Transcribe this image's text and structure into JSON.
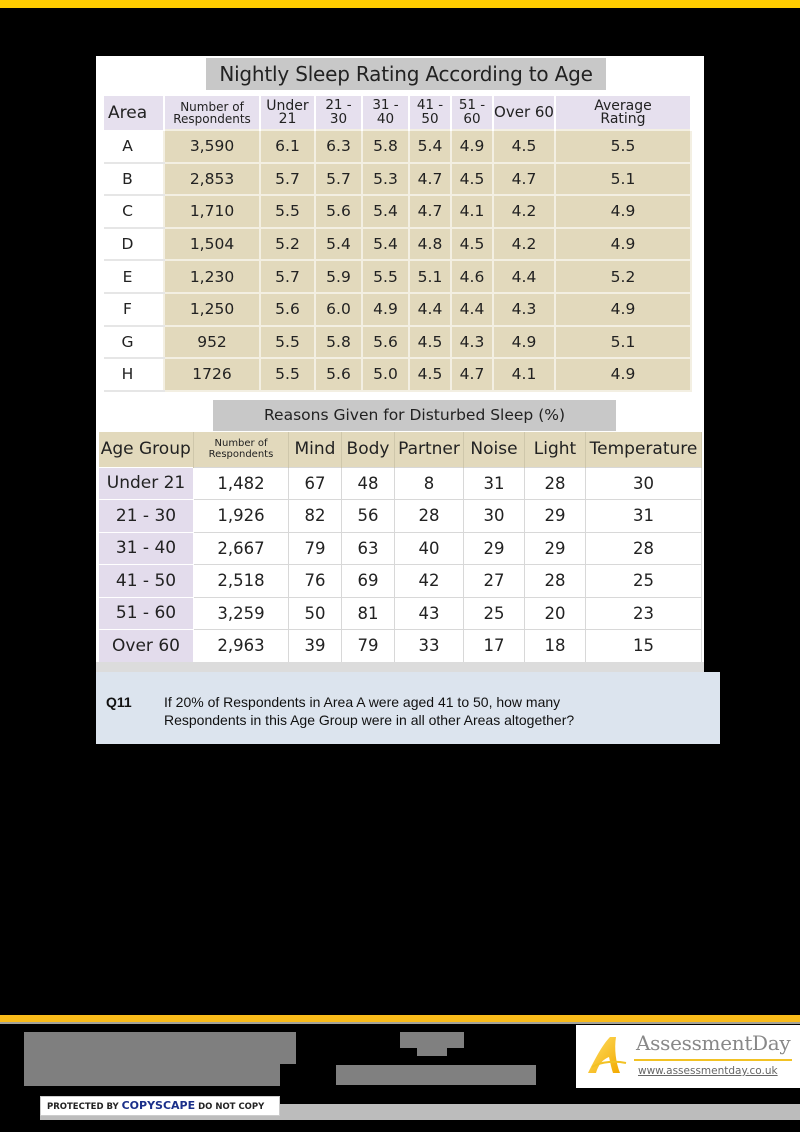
{
  "colors": {
    "accent_yellow": "#ffcc00",
    "footer_yellow": "#f9bb1a",
    "table1_header_bg": "#e6e0ee",
    "table1_cell_bg": "#e2d9bc",
    "table2_header_bg": "#e2d9bc",
    "table2_agegroup_bg": "#e3dcec",
    "question_bg": "#dce4ee"
  },
  "sleep_rating_table": {
    "title": "Nightly Sleep Rating According to Age",
    "headers": {
      "area": "Area",
      "respondents_1": "Number of",
      "respondents_2": "Respondents",
      "under21_1": "Under",
      "under21_2": "21",
      "c21_30": "21 - 30",
      "c31_40": "31 - 40",
      "c41_50": "41 - 50",
      "c51_60": "51 - 60",
      "over60": "Over 60",
      "avg_1": "Average",
      "avg_2": "Rating"
    },
    "rows": [
      {
        "area": "A",
        "respondents": "3,590",
        "under21": "6.1",
        "c21_30": "6.3",
        "c31_40": "5.8",
        "c41_50": "5.4",
        "c51_60": "4.9",
        "over60": "4.5",
        "avg": "5.5"
      },
      {
        "area": "B",
        "respondents": "2,853",
        "under21": "5.7",
        "c21_30": "5.7",
        "c31_40": "5.3",
        "c41_50": "4.7",
        "c51_60": "4.5",
        "over60": "4.7",
        "avg": "5.1"
      },
      {
        "area": "C",
        "respondents": "1,710",
        "under21": "5.5",
        "c21_30": "5.6",
        "c31_40": "5.4",
        "c41_50": "4.7",
        "c51_60": "4.1",
        "over60": "4.2",
        "avg": "4.9"
      },
      {
        "area": "D",
        "respondents": "1,504",
        "under21": "5.2",
        "c21_30": "5.4",
        "c31_40": "5.4",
        "c41_50": "4.8",
        "c51_60": "4.5",
        "over60": "4.2",
        "avg": "4.9"
      },
      {
        "area": "E",
        "respondents": "1,230",
        "under21": "5.7",
        "c21_30": "5.9",
        "c31_40": "5.5",
        "c41_50": "5.1",
        "c51_60": "4.6",
        "over60": "4.4",
        "avg": "5.2"
      },
      {
        "area": "F",
        "respondents": "1,250",
        "under21": "5.6",
        "c21_30": "6.0",
        "c31_40": "4.9",
        "c41_50": "4.4",
        "c51_60": "4.4",
        "over60": "4.3",
        "avg": "4.9"
      },
      {
        "area": "G",
        "respondents": "952",
        "under21": "5.5",
        "c21_30": "5.8",
        "c31_40": "5.6",
        "c41_50": "4.5",
        "c51_60": "4.3",
        "over60": "4.9",
        "avg": "5.1"
      },
      {
        "area": "H",
        "respondents": "1726",
        "under21": "5.5",
        "c21_30": "5.6",
        "c31_40": "5.0",
        "c41_50": "4.5",
        "c51_60": "4.7",
        "over60": "4.1",
        "avg": "4.9"
      }
    ]
  },
  "disturbed_sleep_table": {
    "title": "Reasons Given for Disturbed Sleep (%)",
    "headers": {
      "age_group": "Age Group",
      "respondents_1": "Number of",
      "respondents_2": "Respondents",
      "mind": "Mind",
      "body": "Body",
      "partner": "Partner",
      "noise": "Noise",
      "light": "Light",
      "temperature": "Temperature"
    },
    "rows": [
      {
        "age_group": "Under 21",
        "respondents": "1,482",
        "mind": "67",
        "body": "48",
        "partner": "8",
        "noise": "31",
        "light": "28",
        "temperature": "30"
      },
      {
        "age_group": "21 - 30",
        "respondents": "1,926",
        "mind": "82",
        "body": "56",
        "partner": "28",
        "noise": "30",
        "light": "29",
        "temperature": "31"
      },
      {
        "age_group": "31 - 40",
        "respondents": "2,667",
        "mind": "79",
        "body": "63",
        "partner": "40",
        "noise": "29",
        "light": "29",
        "temperature": "28"
      },
      {
        "age_group": "41 - 50",
        "respondents": "2,518",
        "mind": "76",
        "body": "69",
        "partner": "42",
        "noise": "27",
        "light": "28",
        "temperature": "25"
      },
      {
        "age_group": "51 - 60",
        "respondents": "3,259",
        "mind": "50",
        "body": "81",
        "partner": "43",
        "noise": "25",
        "light": "20",
        "temperature": "23"
      },
      {
        "age_group": "Over 60",
        "respondents": "2,963",
        "mind": "39",
        "body": "79",
        "partner": "33",
        "noise": "17",
        "light": "18",
        "temperature": "15"
      }
    ]
  },
  "question": {
    "number": "Q11",
    "line1": "If 20% of Respondents in Area A were aged 41 to 50, how many",
    "line2": "Respondents in this Age Group were in all other Areas altogether?"
  },
  "footer": {
    "copyscape_prefix": "PROTECTED BY ",
    "copyscape_brand": "COPYSCAPE",
    "copyscape_suffix": " DO NOT COPY",
    "logo_name": "AssessmentDay",
    "logo_url": "www.assessmentday.co.uk"
  }
}
